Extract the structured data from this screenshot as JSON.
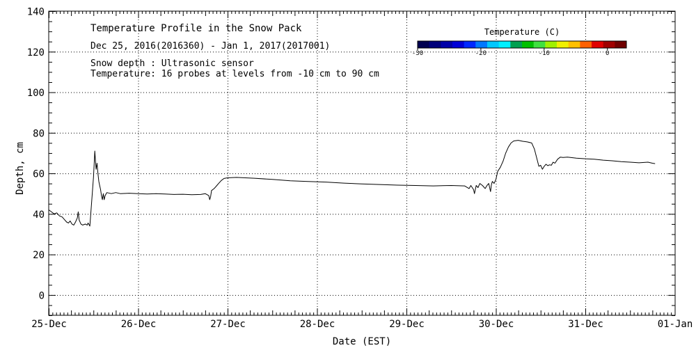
{
  "chart_data": {
    "type": "line",
    "title": "Temperature Profile in the Snow Pack",
    "subtitle": "Dec 25, 2016(2016360) - Jan  1, 2017(2017001)",
    "notes": [
      "Snow depth : Ultrasonic sensor",
      "Temperature: 16 probes at levels from -10 cm to 90 cm"
    ],
    "xlabel": "Date (EST)",
    "ylabel": "Depth, cm",
    "x_ticks": [
      "25-Dec",
      "26-Dec",
      "27-Dec",
      "28-Dec",
      "29-Dec",
      "30-Dec",
      "31-Dec",
      "01-Jan"
    ],
    "xlim_days": [
      0,
      7
    ],
    "y_ticks": [
      0,
      20,
      40,
      60,
      80,
      100,
      120,
      140
    ],
    "ylim": [
      -10,
      140
    ],
    "grid": true,
    "colorbar": {
      "title": "Temperature (C)",
      "range": [
        -30,
        3
      ],
      "tick_values": [
        -30,
        -20,
        -10,
        0
      ],
      "tick_labels": [
        "-30",
        "-20",
        "-10",
        "0"
      ],
      "colors": [
        "#000050",
        "#00007a",
        "#0000a8",
        "#0000d6",
        "#0028ff",
        "#0078ff",
        "#00c8ff",
        "#00f0ff",
        "#00a050",
        "#00c000",
        "#40e040",
        "#a0f000",
        "#f0f000",
        "#ffc000",
        "#ff6000",
        "#e00000",
        "#a00000",
        "#700000"
      ]
    },
    "series": [
      {
        "color": "#000000",
        "points": [
          [
            0.0,
            42
          ],
          [
            0.03,
            41
          ],
          [
            0.06,
            40
          ],
          [
            0.09,
            40.5
          ],
          [
            0.12,
            39
          ],
          [
            0.15,
            38.5
          ],
          [
            0.18,
            37
          ],
          [
            0.2,
            36
          ],
          [
            0.22,
            35.5
          ],
          [
            0.24,
            36.5
          ],
          [
            0.26,
            35
          ],
          [
            0.28,
            34.5
          ],
          [
            0.3,
            36
          ],
          [
            0.32,
            38
          ],
          [
            0.33,
            41
          ],
          [
            0.34,
            37
          ],
          [
            0.36,
            35
          ],
          [
            0.38,
            34.5
          ],
          [
            0.41,
            35
          ],
          [
            0.43,
            34.5
          ],
          [
            0.44,
            35.5
          ],
          [
            0.46,
            34
          ],
          [
            0.47,
            40
          ],
          [
            0.48,
            46
          ],
          [
            0.49,
            52
          ],
          [
            0.5,
            58
          ],
          [
            0.51,
            66
          ],
          [
            0.515,
            71
          ],
          [
            0.52,
            68
          ],
          [
            0.53,
            62
          ],
          [
            0.54,
            65
          ],
          [
            0.55,
            60
          ],
          [
            0.56,
            56
          ],
          [
            0.57,
            54
          ],
          [
            0.58,
            52
          ],
          [
            0.59,
            49
          ],
          [
            0.6,
            47
          ],
          [
            0.61,
            50
          ],
          [
            0.62,
            47
          ],
          [
            0.63,
            49
          ],
          [
            0.65,
            50.5
          ],
          [
            0.7,
            50
          ],
          [
            0.75,
            50.5
          ],
          [
            0.8,
            50
          ],
          [
            0.9,
            50.2
          ],
          [
            1.0,
            50
          ],
          [
            1.1,
            49.8
          ],
          [
            1.2,
            50
          ],
          [
            1.3,
            49.8
          ],
          [
            1.4,
            49.6
          ],
          [
            1.5,
            49.7
          ],
          [
            1.6,
            49.5
          ],
          [
            1.7,
            49.6
          ],
          [
            1.75,
            50
          ],
          [
            1.79,
            49
          ],
          [
            1.8,
            47
          ],
          [
            1.81,
            48.5
          ],
          [
            1.82,
            51.5
          ],
          [
            1.85,
            52.5
          ],
          [
            1.88,
            54
          ],
          [
            1.9,
            55
          ],
          [
            1.93,
            56.5
          ],
          [
            1.96,
            57.5
          ],
          [
            2.0,
            57.8
          ],
          [
            2.1,
            58
          ],
          [
            2.2,
            57.8
          ],
          [
            2.3,
            57.6
          ],
          [
            2.5,
            57
          ],
          [
            2.7,
            56.3
          ],
          [
            2.9,
            56
          ],
          [
            3.1,
            55.7
          ],
          [
            3.3,
            55.2
          ],
          [
            3.5,
            54.8
          ],
          [
            3.7,
            54.5
          ],
          [
            3.9,
            54.2
          ],
          [
            4.1,
            54
          ],
          [
            4.3,
            53.8
          ],
          [
            4.5,
            54
          ],
          [
            4.65,
            53.8
          ],
          [
            4.7,
            52.5
          ],
          [
            4.72,
            54
          ],
          [
            4.75,
            52
          ],
          [
            4.76,
            50
          ],
          [
            4.78,
            54
          ],
          [
            4.8,
            53
          ],
          [
            4.82,
            55
          ],
          [
            4.85,
            54
          ],
          [
            4.88,
            52.5
          ],
          [
            4.9,
            54
          ],
          [
            4.92,
            55
          ],
          [
            4.94,
            51
          ],
          [
            4.95,
            54.5
          ],
          [
            4.96,
            56
          ],
          [
            4.98,
            55
          ],
          [
            5.0,
            57
          ],
          [
            5.02,
            61
          ],
          [
            5.05,
            63
          ],
          [
            5.08,
            66
          ],
          [
            5.11,
            70
          ],
          [
            5.14,
            73
          ],
          [
            5.17,
            75
          ],
          [
            5.2,
            76
          ],
          [
            5.25,
            76.3
          ],
          [
            5.3,
            75.8
          ],
          [
            5.35,
            75.5
          ],
          [
            5.4,
            75
          ],
          [
            5.43,
            72
          ],
          [
            5.46,
            67
          ],
          [
            5.48,
            63.5
          ],
          [
            5.5,
            64
          ],
          [
            5.52,
            62
          ],
          [
            5.54,
            63.5
          ],
          [
            5.56,
            64.5
          ],
          [
            5.58,
            63.8
          ],
          [
            5.6,
            64.2
          ],
          [
            5.62,
            64
          ],
          [
            5.64,
            65.5
          ],
          [
            5.66,
            65
          ],
          [
            5.69,
            67
          ],
          [
            5.72,
            68
          ],
          [
            5.75,
            67.8
          ],
          [
            5.8,
            68
          ],
          [
            5.9,
            67.5
          ],
          [
            6.0,
            67.2
          ],
          [
            6.1,
            67
          ],
          [
            6.2,
            66.5
          ],
          [
            6.3,
            66.2
          ],
          [
            6.4,
            65.8
          ],
          [
            6.5,
            65.5
          ],
          [
            6.6,
            65.2
          ],
          [
            6.7,
            65.5
          ],
          [
            6.75,
            65
          ],
          [
            6.78,
            64.8
          ]
        ]
      }
    ]
  }
}
